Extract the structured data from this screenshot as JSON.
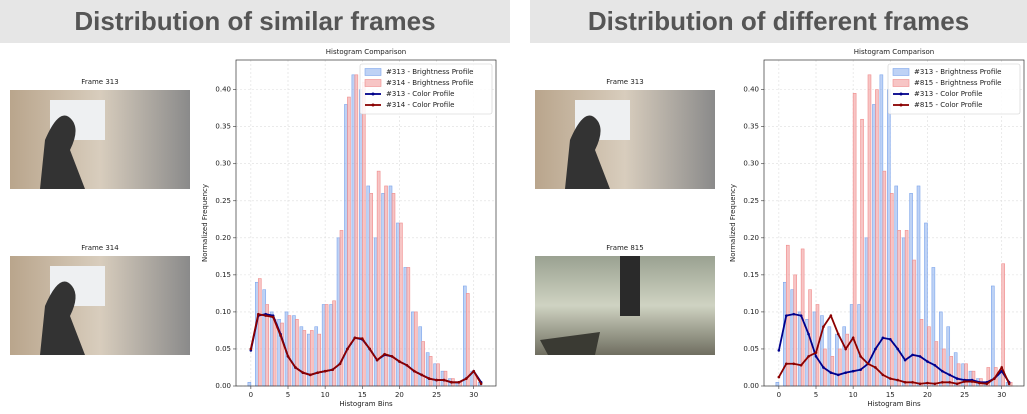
{
  "panels": [
    {
      "heading": "Distribution of similar frames",
      "frames": [
        "Frame 313",
        "Frame 314"
      ]
    },
    {
      "heading": "Distribution of different frames",
      "frames": [
        "Frame 313",
        "Frame 815"
      ]
    }
  ],
  "chart_data": [
    {
      "type": "histogram",
      "title": "Histogram Comparison",
      "x_label": "Histogram Bins",
      "y_label": "Normalized Frequency",
      "x": [
        0,
        1,
        2,
        3,
        4,
        5,
        6,
        7,
        8,
        9,
        10,
        11,
        12,
        13,
        14,
        15,
        16,
        17,
        18,
        19,
        20,
        21,
        22,
        23,
        24,
        25,
        26,
        27,
        28,
        29,
        30,
        31
      ],
      "xlim": [
        -2,
        33
      ],
      "xticks": [
        0,
        5,
        10,
        15,
        20,
        25,
        30
      ],
      "ylim": [
        0,
        0.44
      ],
      "yticks": [
        {
          "value": 0,
          "label": "0.00"
        },
        {
          "value": 0.05,
          "label": "0.05"
        },
        {
          "value": 0.1,
          "label": "0.10"
        },
        {
          "value": 0.15,
          "label": "0.15"
        },
        {
          "value": 0.2,
          "label": "0.20"
        },
        {
          "value": 0.25,
          "label": "0.25"
        },
        {
          "value": 0.3,
          "label": "0.30"
        },
        {
          "value": 0.35,
          "label": "0.35"
        },
        {
          "value": 0.4,
          "label": "0.40"
        }
      ],
      "grid": true,
      "legend": "upper right",
      "series": [
        {
          "name": "#313 - Brightness Profile",
          "type": "bar",
          "color": "#7ea6ec",
          "values": [
            0.005,
            0.14,
            0.13,
            0.1,
            0.09,
            0.1,
            0.095,
            0.08,
            0.07,
            0.08,
            0.11,
            0.11,
            0.2,
            0.38,
            0.42,
            0.4,
            0.27,
            0.2,
            0.26,
            0.27,
            0.22,
            0.16,
            0.1,
            0.08,
            0.045,
            0.03,
            0.02,
            0.01,
            0.005,
            0.135,
            0.02,
            0.005
          ]
        },
        {
          "name": "#314 - Brightness Profile",
          "type": "bar",
          "color": "#f08c8c",
          "values": [
            0,
            0.145,
            0.11,
            0.09,
            0.085,
            0.095,
            0.09,
            0.075,
            0.075,
            0.07,
            0.11,
            0.115,
            0.21,
            0.39,
            0.42,
            0.41,
            0.26,
            0.29,
            0.27,
            0.26,
            0.22,
            0.16,
            0.1,
            0.06,
            0.04,
            0.03,
            0.02,
            0.01,
            0.005,
            0.125,
            0.015,
            0
          ]
        },
        {
          "name": "#313 - Color Profile",
          "type": "line",
          "color": "#00008b",
          "values": [
            0.048,
            0.095,
            0.097,
            0.095,
            0.07,
            0.04,
            0.025,
            0.018,
            0.015,
            0.018,
            0.02,
            0.022,
            0.03,
            0.05,
            0.065,
            0.063,
            0.05,
            0.035,
            0.042,
            0.04,
            0.033,
            0.028,
            0.02,
            0.015,
            0.01,
            0.008,
            0.008,
            0.005,
            0.005,
            0.01,
            0.02,
            0.005
          ]
        },
        {
          "name": "#314 - Color Profile",
          "type": "line",
          "color": "#8b0000",
          "values": [
            0.05,
            0.097,
            0.095,
            0.093,
            0.068,
            0.04,
            0.025,
            0.018,
            0.015,
            0.018,
            0.02,
            0.022,
            0.03,
            0.05,
            0.065,
            0.064,
            0.05,
            0.035,
            0.043,
            0.04,
            0.033,
            0.028,
            0.02,
            0.015,
            0.01,
            0.008,
            0.008,
            0.005,
            0.005,
            0.01,
            0.02,
            0.003
          ]
        }
      ]
    },
    {
      "type": "histogram",
      "title": "Histogram Comparison",
      "x_label": "Histogram Bins",
      "y_label": "Normalized Frequency",
      "x": [
        0,
        1,
        2,
        3,
        4,
        5,
        6,
        7,
        8,
        9,
        10,
        11,
        12,
        13,
        14,
        15,
        16,
        17,
        18,
        19,
        20,
        21,
        22,
        23,
        24,
        25,
        26,
        27,
        28,
        29,
        30,
        31
      ],
      "xlim": [
        -2,
        33
      ],
      "xticks": [
        0,
        5,
        10,
        15,
        20,
        25,
        30
      ],
      "ylim": [
        0,
        0.44
      ],
      "yticks": [
        {
          "value": 0,
          "label": "0.00"
        },
        {
          "value": 0.05,
          "label": "0.05"
        },
        {
          "value": 0.1,
          "label": "0.10"
        },
        {
          "value": 0.15,
          "label": "0.15"
        },
        {
          "value": 0.2,
          "label": "0.20"
        },
        {
          "value": 0.25,
          "label": "0.25"
        },
        {
          "value": 0.3,
          "label": "0.30"
        },
        {
          "value": 0.35,
          "label": "0.35"
        },
        {
          "value": 0.4,
          "label": "0.40"
        }
      ],
      "grid": true,
      "legend": "upper right",
      "series": [
        {
          "name": "#313 - Brightness Profile",
          "type": "bar",
          "color": "#7ea6ec",
          "values": [
            0.005,
            0.14,
            0.13,
            0.1,
            0.09,
            0.1,
            0.095,
            0.08,
            0.07,
            0.08,
            0.11,
            0.11,
            0.2,
            0.38,
            0.42,
            0.4,
            0.27,
            0.2,
            0.26,
            0.27,
            0.22,
            0.16,
            0.1,
            0.08,
            0.045,
            0.03,
            0.02,
            0.01,
            0.005,
            0.135,
            0.02,
            0.005
          ]
        },
        {
          "name": "#815 - Brightness Profile",
          "type": "bar",
          "color": "#f08c8c",
          "values": [
            0,
            0.19,
            0.15,
            0.185,
            0.13,
            0.11,
            0.05,
            0.04,
            0.05,
            0.07,
            0.395,
            0.36,
            0.42,
            0.4,
            0.29,
            0.26,
            0.21,
            0.21,
            0.17,
            0.09,
            0.08,
            0.06,
            0.05,
            0.04,
            0.03,
            0.03,
            0.02,
            0.01,
            0.025,
            0.025,
            0.165,
            0.005
          ]
        },
        {
          "name": "#313 - Color Profile",
          "type": "line",
          "color": "#00008b",
          "values": [
            0.048,
            0.095,
            0.097,
            0.095,
            0.07,
            0.04,
            0.025,
            0.018,
            0.015,
            0.018,
            0.02,
            0.022,
            0.03,
            0.05,
            0.065,
            0.063,
            0.05,
            0.035,
            0.042,
            0.04,
            0.033,
            0.028,
            0.02,
            0.015,
            0.01,
            0.008,
            0.008,
            0.005,
            0.005,
            0.01,
            0.02,
            0.005
          ]
        },
        {
          "name": "#815 - Color Profile",
          "type": "line",
          "color": "#8b0000",
          "values": [
            0.012,
            0.03,
            0.03,
            0.028,
            0.04,
            0.045,
            0.08,
            0.095,
            0.07,
            0.05,
            0.065,
            0.04,
            0.03,
            0.025,
            0.015,
            0.01,
            0.008,
            0.005,
            0.005,
            0.003,
            0.004,
            0.003,
            0.005,
            0.005,
            0.003,
            0.006,
            0.006,
            0.004,
            0.003,
            0.01,
            0.025,
            0.003
          ]
        }
      ]
    }
  ]
}
